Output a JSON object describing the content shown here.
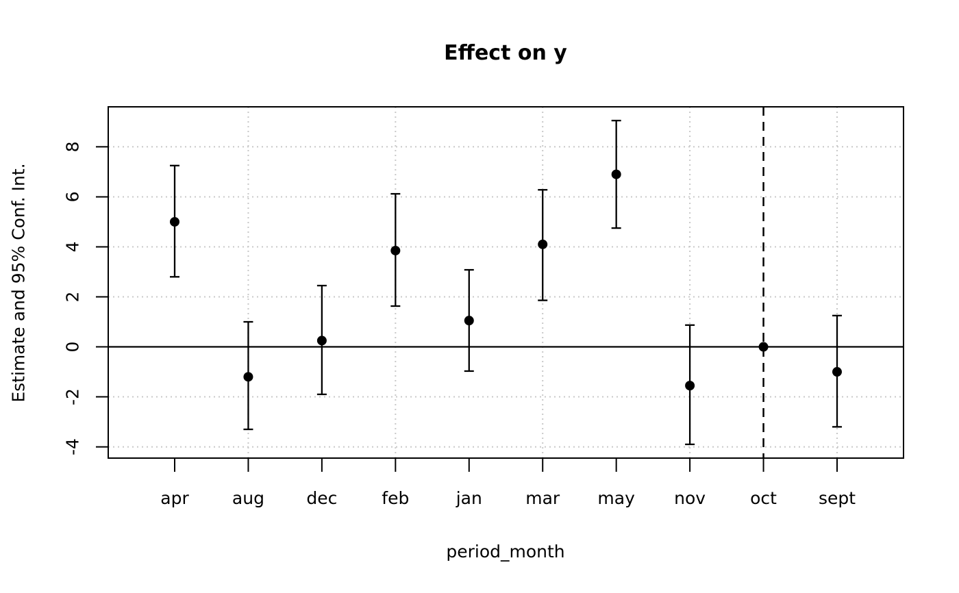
{
  "page": {
    "background": "#ffffff"
  },
  "chart_data": {
    "type": "scatter",
    "subtype": "point-estimates-with-error-bars",
    "title": "Effect on y",
    "xlabel": "period_month",
    "ylabel": "Estimate and 95% Conf. Int.",
    "categories": [
      "apr",
      "aug",
      "dec",
      "feb",
      "jan",
      "mar",
      "may",
      "nov",
      "oct",
      "sept"
    ],
    "points": [
      {
        "category": "apr",
        "estimate": 5.0,
        "ci_low": 2.8,
        "ci_high": 7.25
      },
      {
        "category": "aug",
        "estimate": -1.2,
        "ci_low": -3.3,
        "ci_high": 1.0
      },
      {
        "category": "dec",
        "estimate": 0.25,
        "ci_low": -1.9,
        "ci_high": 2.45
      },
      {
        "category": "feb",
        "estimate": 3.85,
        "ci_low": 1.63,
        "ci_high": 6.12
      },
      {
        "category": "jan",
        "estimate": 1.05,
        "ci_low": -0.97,
        "ci_high": 3.08
      },
      {
        "category": "mar",
        "estimate": 4.1,
        "ci_low": 1.86,
        "ci_high": 6.28
      },
      {
        "category": "may",
        "estimate": 6.9,
        "ci_low": 4.75,
        "ci_high": 9.05
      },
      {
        "category": "nov",
        "estimate": -1.55,
        "ci_low": -3.9,
        "ci_high": 0.87
      },
      {
        "category": "oct",
        "estimate": 0.0,
        "ci_low": null,
        "ci_high": null,
        "reference": true
      },
      {
        "category": "sept",
        "estimate": -1.0,
        "ci_low": -3.2,
        "ci_high": 1.25
      }
    ],
    "ylim": [
      -4.45,
      9.6
    ],
    "yticks": [
      -4,
      -2,
      0,
      2,
      4,
      6,
      8
    ],
    "grid": {
      "horizontal_at": [
        -4,
        -2,
        0,
        2,
        4,
        6,
        8
      ],
      "vertical_at_categories": [
        "aug",
        "feb",
        "mar",
        "nov",
        "sept"
      ],
      "style": "dotted",
      "color": "#c8c8c8"
    },
    "reference_hline": {
      "y": 0,
      "style": "solid",
      "color": "#000000"
    },
    "reference_vline": {
      "category": "oct",
      "style": "dashed",
      "color": "#000000"
    },
    "legend": "none",
    "colors": {
      "point": "#000000",
      "errorbar": "#000000",
      "axis": "#000000",
      "background": "#ffffff"
    }
  }
}
